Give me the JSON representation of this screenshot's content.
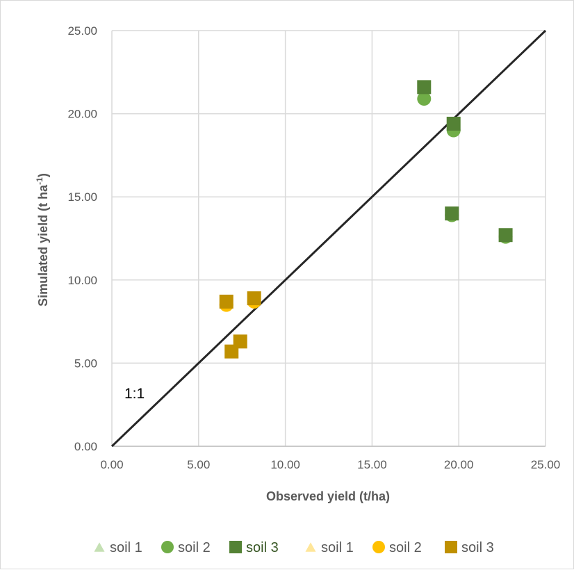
{
  "chart_data": {
    "type": "scatter",
    "title": "",
    "xlabel": "Observed yield (t/ha)",
    "ylabel_main": "Simulated yield (t ha",
    "ylabel_sup": "-1",
    "ylabel_close": ")",
    "xlim": [
      0,
      25
    ],
    "ylim": [
      0,
      25
    ],
    "x_ticks": [
      "0.00",
      "5.00",
      "10.00",
      "15.00",
      "20.00",
      "25.00"
    ],
    "y_ticks": [
      "0.00",
      "5.00",
      "10.00",
      "15.00",
      "20.00",
      "25.00"
    ],
    "grid": true,
    "legend_position": "bottom",
    "reference_line": {
      "label": "1:1",
      "from": [
        0,
        0
      ],
      "to": [
        25,
        25
      ],
      "color": "#262626"
    },
    "series": [
      {
        "name": "soil 1",
        "marker": "triangle",
        "color": "#c5e0b4",
        "text_color": "#595959",
        "points": []
      },
      {
        "name": "soil 2",
        "marker": "circle",
        "color": "#70ad47",
        "text_color": "#595959",
        "points": [
          [
            18.0,
            20.9
          ],
          [
            19.7,
            19.0
          ],
          [
            19.6,
            13.9
          ],
          [
            22.7,
            12.6
          ]
        ]
      },
      {
        "name": "soil 3",
        "marker": "square",
        "color": "#548235",
        "text_color": "#375623",
        "points": [
          [
            18.0,
            21.6
          ],
          [
            19.7,
            19.4
          ],
          [
            19.6,
            14.0
          ],
          [
            22.7,
            12.7
          ]
        ]
      },
      {
        "name": "soil 1",
        "marker": "triangle",
        "color": "#ffe699",
        "text_color": "#595959",
        "points": []
      },
      {
        "name": "soil 2",
        "marker": "circle",
        "color": "#ffc000",
        "text_color": "#595959",
        "points": [
          [
            6.6,
            8.5
          ],
          [
            8.2,
            8.7
          ]
        ]
      },
      {
        "name": "soil 3",
        "marker": "square",
        "color": "#bf9000",
        "text_color": "#595959",
        "points": [
          [
            6.6,
            8.7
          ],
          [
            8.2,
            8.9
          ],
          [
            6.9,
            5.7
          ],
          [
            7.4,
            6.3
          ]
        ]
      }
    ]
  }
}
